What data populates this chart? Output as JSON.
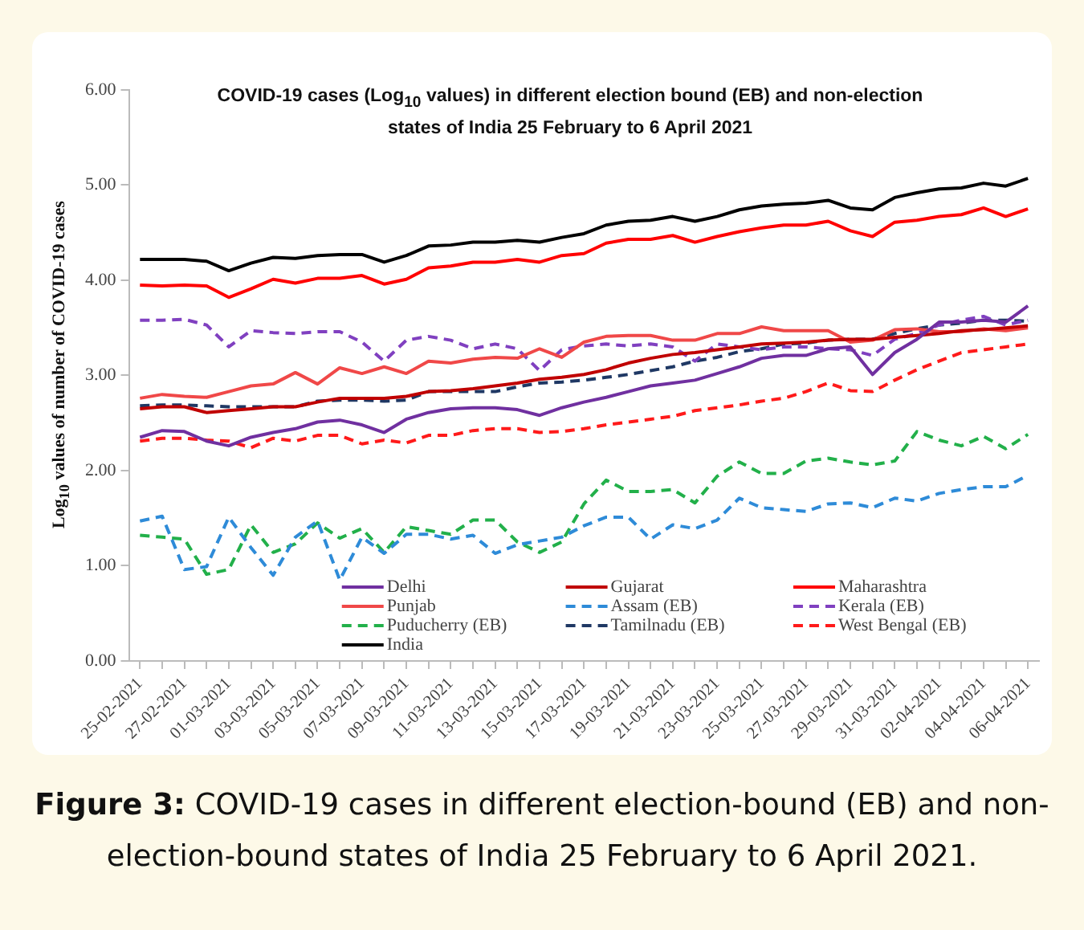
{
  "chart_data": {
    "type": "line",
    "title": "COVID-19 cases (Log$_{10}$ values) in different election bound (EB) and non-election states of India 25 February to 6 April 2021",
    "ylabel": "Log$_{10}$ values of number of COVID-19 cases",
    "annotations": [
      "Figure 3: COVID-19 cases in different election-bound (EB) and non-election-bound states of India 25 February to 6 April 2021."
    ],
    "categories": [
      "25-02-2021",
      null,
      "27-02-2021",
      null,
      "01-03-2021",
      null,
      "03-03-2021",
      null,
      "05-03-2021",
      null,
      "07-03-2021",
      null,
      "09-03-2021",
      null,
      "11-03-2021",
      null,
      "13-03-2021",
      null,
      "15-03-2021",
      null,
      "17-03-2021",
      null,
      "19-03-2021",
      null,
      "21-03-2021",
      null,
      "23-03-2021",
      null,
      "25-03-2021",
      null,
      "27-03-2021",
      null,
      "29-03-2021",
      null,
      "31-03-2021",
      null,
      "02-04-2021",
      null,
      "04-04-2021",
      null,
      "06-04-2021"
    ],
    "series": [
      {
        "name": "Delhi",
        "color": "#7030a0",
        "line_style": "solid",
        "values": [
          2.35,
          2.42,
          2.41,
          2.31,
          2.26,
          2.35,
          2.4,
          2.44,
          2.51,
          2.53,
          2.48,
          2.4,
          2.54,
          2.61,
          2.65,
          2.66,
          2.66,
          2.64,
          2.58,
          2.66,
          2.72,
          2.77,
          2.83,
          2.89,
          2.92,
          2.95,
          3.02,
          3.09,
          3.18,
          3.21,
          3.21,
          3.28,
          3.3,
          3.01,
          3.24,
          3.38,
          3.56,
          3.56,
          3.58,
          3.56,
          3.73
        ]
      },
      {
        "name": "Gujarat",
        "color": "#c00000",
        "line_style": "solid",
        "values": [
          2.65,
          2.67,
          2.67,
          2.61,
          2.63,
          2.65,
          2.67,
          2.67,
          2.72,
          2.76,
          2.76,
          2.76,
          2.78,
          2.83,
          2.84,
          2.86,
          2.89,
          2.92,
          2.96,
          2.98,
          3.01,
          3.06,
          3.13,
          3.18,
          3.22,
          3.24,
          3.27,
          3.3,
          3.33,
          3.34,
          3.35,
          3.37,
          3.38,
          3.38,
          3.4,
          3.42,
          3.44,
          3.47,
          3.48,
          3.5,
          3.52
        ]
      },
      {
        "name": "Maharashtra",
        "color": "#ff0000",
        "line_style": "solid",
        "values": [
          3.95,
          3.94,
          3.95,
          3.94,
          3.82,
          3.91,
          4.01,
          3.97,
          4.02,
          4.02,
          4.05,
          3.96,
          4.01,
          4.13,
          4.15,
          4.19,
          4.19,
          4.22,
          4.19,
          4.26,
          4.28,
          4.39,
          4.43,
          4.43,
          4.47,
          4.4,
          4.46,
          4.51,
          4.55,
          4.58,
          4.58,
          4.62,
          4.52,
          4.46,
          4.61,
          4.63,
          4.67,
          4.69,
          4.76,
          4.67,
          4.75
        ]
      },
      {
        "name": "Punjab",
        "color": "#f04848",
        "line_style": "solid",
        "values": [
          2.76,
          2.8,
          2.78,
          2.77,
          2.83,
          2.89,
          2.91,
          3.03,
          2.91,
          3.08,
          3.02,
          3.09,
          3.02,
          3.15,
          3.13,
          3.17,
          3.19,
          3.18,
          3.28,
          3.19,
          3.35,
          3.41,
          3.42,
          3.42,
          3.37,
          3.37,
          3.44,
          3.44,
          3.51,
          3.47,
          3.47,
          3.47,
          3.35,
          3.37,
          3.48,
          3.49,
          3.46,
          3.46,
          3.49,
          3.47,
          3.5
        ]
      },
      {
        "name": "Assam (EB)",
        "color": "#2e8bd8",
        "line_style": "dashed",
        "values": [
          1.47,
          1.52,
          0.96,
          0.99,
          1.51,
          1.19,
          0.9,
          1.3,
          1.47,
          0.85,
          1.3,
          1.13,
          1.33,
          1.33,
          1.28,
          1.32,
          1.13,
          1.22,
          1.26,
          1.3,
          1.42,
          1.51,
          1.51,
          1.28,
          1.43,
          1.39,
          1.48,
          1.71,
          1.61,
          1.59,
          1.57,
          1.65,
          1.66,
          1.61,
          1.71,
          1.68,
          1.76,
          1.8,
          1.83,
          1.83,
          1.95
        ]
      },
      {
        "name": "Kerala (EB)",
        "color": "#8040c0",
        "line_style": "dashed",
        "values": [
          3.58,
          3.58,
          3.59,
          3.53,
          3.3,
          3.47,
          3.45,
          3.44,
          3.46,
          3.46,
          3.35,
          3.15,
          3.37,
          3.41,
          3.37,
          3.28,
          3.33,
          3.28,
          3.05,
          3.27,
          3.31,
          3.33,
          3.31,
          3.33,
          3.3,
          3.15,
          3.33,
          3.3,
          3.27,
          3.3,
          3.3,
          3.28,
          3.27,
          3.21,
          3.38,
          3.44,
          3.53,
          3.58,
          3.62,
          3.53,
          3.58
        ]
      },
      {
        "name": "Puducherry (EB)",
        "color": "#22b04a",
        "line_style": "dashed",
        "values": [
          1.32,
          1.3,
          1.28,
          0.91,
          0.96,
          1.43,
          1.14,
          1.23,
          1.45,
          1.29,
          1.39,
          1.14,
          1.41,
          1.37,
          1.33,
          1.48,
          1.48,
          1.25,
          1.14,
          1.25,
          1.65,
          1.9,
          1.78,
          1.78,
          1.8,
          1.66,
          1.94,
          2.09,
          1.97,
          1.97,
          2.1,
          2.13,
          2.09,
          2.06,
          2.1,
          2.41,
          2.32,
          2.26,
          2.36,
          2.23,
          2.38
        ]
      },
      {
        "name": "Tamilnadu (EB)",
        "color": "#1f3864",
        "line_style": "dashed",
        "values": [
          2.68,
          2.69,
          2.69,
          2.68,
          2.67,
          2.67,
          2.67,
          2.67,
          2.73,
          2.74,
          2.74,
          2.73,
          2.74,
          2.83,
          2.83,
          2.83,
          2.83,
          2.88,
          2.92,
          2.93,
          2.95,
          2.98,
          3.01,
          3.05,
          3.09,
          3.15,
          3.19,
          3.25,
          3.28,
          3.33,
          3.34,
          3.37,
          3.38,
          3.38,
          3.44,
          3.49,
          3.53,
          3.55,
          3.58,
          3.58,
          3.57
        ]
      },
      {
        "name": "West Bengal (EB)",
        "color": "#ff1a1a",
        "line_style": "dashed",
        "values": [
          2.31,
          2.34,
          2.34,
          2.32,
          2.31,
          2.24,
          2.34,
          2.31,
          2.37,
          2.37,
          2.28,
          2.32,
          2.29,
          2.37,
          2.37,
          2.42,
          2.44,
          2.44,
          2.4,
          2.41,
          2.44,
          2.48,
          2.51,
          2.54,
          2.57,
          2.63,
          2.66,
          2.69,
          2.73,
          2.76,
          2.83,
          2.92,
          2.84,
          2.83,
          2.95,
          3.06,
          3.15,
          3.24,
          3.27,
          3.3,
          3.33
        ]
      },
      {
        "name": "India",
        "color": "#000000",
        "line_style": "solid",
        "values": [
          4.22,
          4.22,
          4.22,
          4.2,
          4.1,
          4.18,
          4.24,
          4.23,
          4.26,
          4.27,
          4.27,
          4.19,
          4.26,
          4.36,
          4.37,
          4.4,
          4.4,
          4.42,
          4.4,
          4.45,
          4.49,
          4.58,
          4.62,
          4.63,
          4.67,
          4.62,
          4.67,
          4.74,
          4.78,
          4.8,
          4.81,
          4.84,
          4.76,
          4.74,
          4.87,
          4.92,
          4.96,
          4.97,
          5.02,
          4.99,
          5.07
        ]
      }
    ],
    "ylim": [
      0,
      6
    ],
    "yticks": [
      {
        "value": 0,
        "label": "0.00"
      },
      {
        "value": 1,
        "label": "1.00"
      },
      {
        "value": 2,
        "label": "2.00"
      },
      {
        "value": 3,
        "label": "3.00"
      },
      {
        "value": 4,
        "label": "4.00"
      },
      {
        "value": 5,
        "label": "5.00"
      },
      {
        "value": 6,
        "label": "6.00"
      }
    ],
    "grid": false,
    "legend": "bottom",
    "marker": "none"
  }
}
